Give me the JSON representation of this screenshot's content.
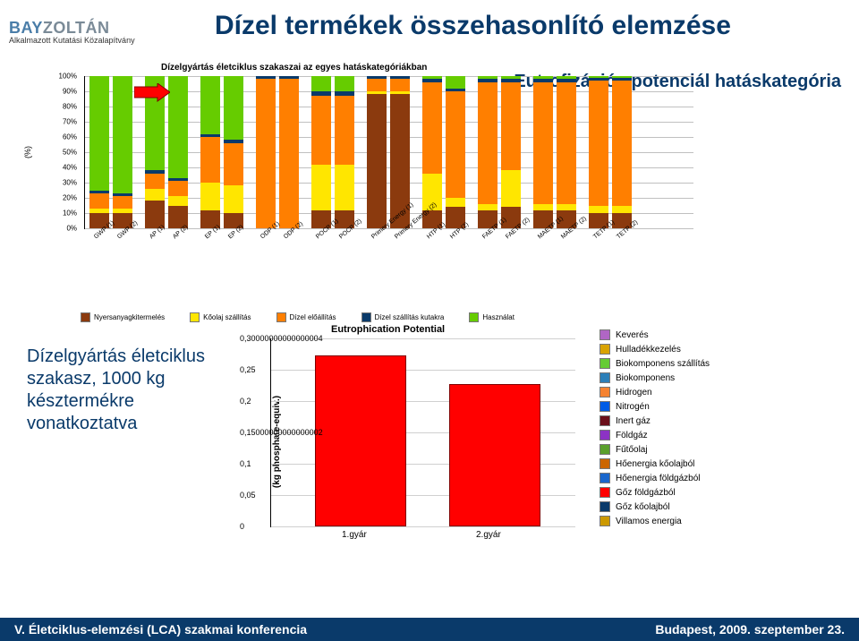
{
  "logo": {
    "bay": "BAY",
    "zoltan": "ZOLTÁN",
    "sub": "Alkalmazott Kutatási Közalapítvány"
  },
  "title": "Dízel termékek összehasonlító elemzése",
  "subtitle": "Dízelgyártás életciklus szakaszai az egyes hatáskategóriákban",
  "rightTitle": "Eutrofizációs potenciál hatáskategória",
  "upper": {
    "ylabel": "(%)",
    "ymax": 100,
    "ytick": 10,
    "colors": {
      "nyers": "#8b3a0e",
      "koolaj": "#ffe600",
      "dizelelo": "#ff7f00",
      "dizelszall": "#0a3a6a",
      "hasznalat": "#66cc00"
    },
    "categories": [
      "GWP (1)",
      "GWP (2)",
      "AP (1)",
      "AP (2)",
      "EP (1)",
      "EP (2)",
      "ODP (1)",
      "ODP (2)",
      "POCP (1)",
      "POCP (2)",
      "Primery Energy (1)",
      "Primery Energy (2)",
      "HTP (1)",
      "HTP (2)",
      "FAETP (1)",
      "FAETP (2)",
      "MAETP (1)",
      "MAETP (2)",
      "TETP (1)",
      "TETP (2)"
    ],
    "bars": [
      {
        "nyers": 10,
        "koolaj": 3,
        "dizelelo": 10,
        "dizelszall": 2,
        "hasznalat": 75
      },
      {
        "nyers": 10,
        "koolaj": 3,
        "dizelelo": 8,
        "dizelszall": 2,
        "hasznalat": 77
      },
      {
        "nyers": 18,
        "koolaj": 8,
        "dizelelo": 10,
        "dizelszall": 2,
        "hasznalat": 62
      },
      {
        "nyers": 15,
        "koolaj": 6,
        "dizelelo": 10,
        "dizelszall": 2,
        "hasznalat": 67
      },
      {
        "nyers": 12,
        "koolaj": 18,
        "dizelelo": 30,
        "dizelszall": 2,
        "hasznalat": 38
      },
      {
        "nyers": 10,
        "koolaj": 18,
        "dizelelo": 28,
        "dizelszall": 2,
        "hasznalat": 42
      },
      {
        "nyers": 0,
        "koolaj": 0,
        "dizelelo": 98,
        "dizelszall": 2,
        "hasznalat": 0
      },
      {
        "nyers": 0,
        "koolaj": 0,
        "dizelelo": 98,
        "dizelszall": 2,
        "hasznalat": 0
      },
      {
        "nyers": 12,
        "koolaj": 30,
        "dizelelo": 45,
        "dizelszall": 3,
        "hasznalat": 10
      },
      {
        "nyers": 12,
        "koolaj": 30,
        "dizelelo": 45,
        "dizelszall": 3,
        "hasznalat": 10
      },
      {
        "nyers": 88,
        "koolaj": 2,
        "dizelelo": 8,
        "dizelszall": 2,
        "hasznalat": 0
      },
      {
        "nyers": 88,
        "koolaj": 2,
        "dizelelo": 8,
        "dizelszall": 2,
        "hasznalat": 0
      },
      {
        "nyers": 12,
        "koolaj": 24,
        "dizelelo": 60,
        "dizelszall": 2,
        "hasznalat": 2
      },
      {
        "nyers": 14,
        "koolaj": 6,
        "dizelelo": 70,
        "dizelszall": 2,
        "hasznalat": 8
      },
      {
        "nyers": 12,
        "koolaj": 4,
        "dizelelo": 80,
        "dizelszall": 2,
        "hasznalat": 2
      },
      {
        "nyers": 14,
        "koolaj": 24,
        "dizelelo": 58,
        "dizelszall": 2,
        "hasznalat": 2
      },
      {
        "nyers": 12,
        "koolaj": 4,
        "dizelelo": 80,
        "dizelszall": 2,
        "hasznalat": 2
      },
      {
        "nyers": 12,
        "koolaj": 4,
        "dizelelo": 80,
        "dizelszall": 2,
        "hasznalat": 2
      },
      {
        "nyers": 10,
        "koolaj": 5,
        "dizelelo": 82,
        "dizelszall": 2,
        "hasznalat": 1
      },
      {
        "nyers": 10,
        "koolaj": 5,
        "dizelelo": 82,
        "dizelszall": 2,
        "hasznalat": 1
      }
    ],
    "legend": [
      {
        "key": "nyers",
        "label": "Nyersanyagkitermelés"
      },
      {
        "key": "koolaj",
        "label": "Kőolaj szállítás"
      },
      {
        "key": "dizelelo",
        "label": "Dízel előállítás"
      },
      {
        "key": "dizelszall",
        "label": "Dízel szállítás kutakra"
      },
      {
        "key": "hasznalat",
        "label": "Használat"
      }
    ]
  },
  "lowerText": "Dízelgyártás életciklus szakasz, 1000 kg késztermékre vonatkoztatva",
  "lower": {
    "title": "Eutrophication Potential",
    "ylabel": "(kg phosphate-equiv.)",
    "ymax": 0.3,
    "ytick": 0.05,
    "xcats": [
      "1.gyár",
      "2.gyár"
    ],
    "values": [
      0.27,
      0.225
    ],
    "barcolor": "#ff0000"
  },
  "legend2": [
    {
      "c": "#b066c4",
      "t": "Keverés"
    },
    {
      "c": "#d9a300",
      "t": "Hulladékkezelés"
    },
    {
      "c": "#66cc33",
      "t": "Biokomponens szállítás"
    },
    {
      "c": "#2c7fb8",
      "t": "Biokomponens"
    },
    {
      "c": "#f58231",
      "t": "Hidrogen"
    },
    {
      "c": "#005ce6",
      "t": "Nitrogén"
    },
    {
      "c": "#6b0f1a",
      "t": "Inert gáz"
    },
    {
      "c": "#8c33c4",
      "t": "Földgáz"
    },
    {
      "c": "#5aa02c",
      "t": "Fűtőolaj"
    },
    {
      "c": "#cc6600",
      "t": "Hőenergia kőolajból"
    },
    {
      "c": "#1a66cc",
      "t": "Hőenergia földgázból"
    },
    {
      "c": "#ff0000",
      "t": "Gőz földgázból"
    },
    {
      "c": "#0a3a6a",
      "t": "Gőz kőolajból"
    },
    {
      "c": "#cc9900",
      "t": "Villamos energia"
    }
  ],
  "footer": {
    "left": "V. Életciklus-elemzési (LCA) szakmai konferencia",
    "right": "Budapest, 2009. szeptember 23."
  }
}
